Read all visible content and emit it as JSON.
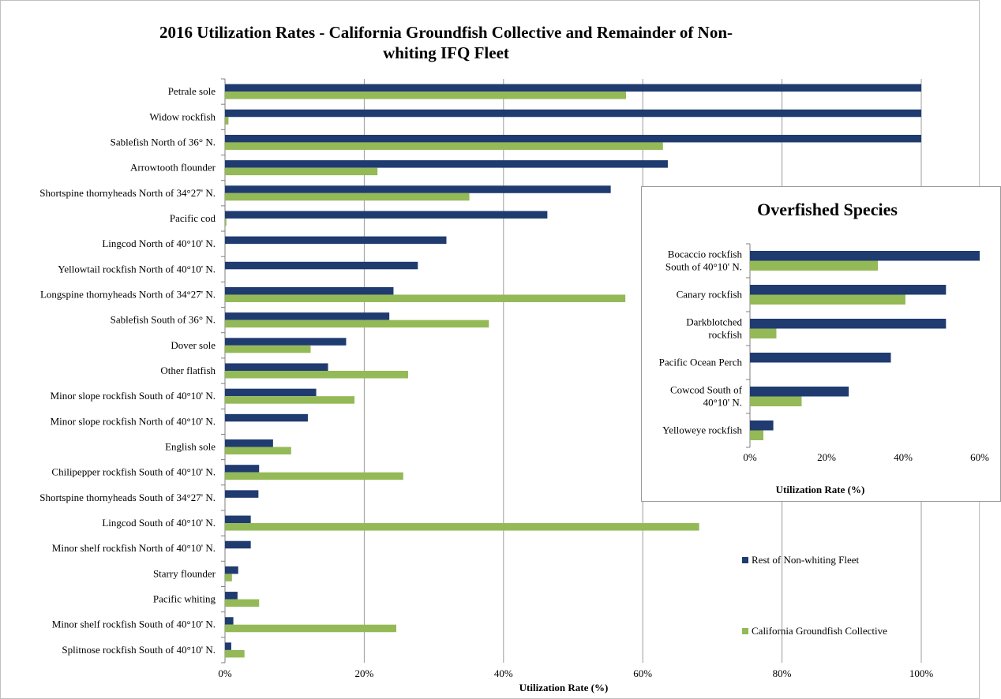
{
  "colors": {
    "rest": "#1f3b6f",
    "cgc": "#94b957",
    "grid": "#9c9c9c"
  },
  "chart_data": [
    {
      "type": "bar",
      "orientation": "horizontal",
      "title": "2016 Utilization Rates - California Groundfish Collective and Remainder of Non-whiting IFQ Fleet",
      "xlabel": "Utilization Rate (%)",
      "xlim": [
        0,
        100
      ],
      "xticks": [
        "0%",
        "20%",
        "40%",
        "60%",
        "80%",
        "100%"
      ],
      "grid": true,
      "legend": "right",
      "categories": [
        "Petrale sole",
        "Widow rockfish",
        "Sablefish North of 36° N.",
        "Arrowtooth flounder",
        "Shortspine thornyheads North of 34°27' N.",
        "Pacific cod",
        "Lingcod North of 40°10' N.",
        "Yellowtail rockfish North of 40°10' N.",
        "Longspine thornyheads North of 34°27' N.",
        "Sablefish South of 36° N.",
        "Dover sole",
        "Other flatfish",
        "Minor slope rockfish South of 40°10' N.",
        "Minor slope rockfish North of 40°10' N.",
        "English sole",
        "Chilipepper rockfish South of 40°10' N.",
        "Shortspine thornyheads South of 34°27' N.",
        "Lingcod South of 40°10' N.",
        "Minor shelf rockfish North of 40°10' N.",
        "Starry flounder",
        "Pacific whiting",
        "Minor shelf rockfish South of 40°10' N.",
        "Splitnose rockfish South of 40°10' N."
      ],
      "series": [
        {
          "name": "Rest of Non-whiting Fleet",
          "values": [
            100,
            100,
            100,
            63.6,
            55.4,
            46.3,
            31.8,
            27.7,
            24.2,
            23.6,
            17.4,
            14.8,
            13.1,
            11.9,
            6.9,
            4.9,
            4.8,
            3.7,
            3.7,
            1.9,
            1.8,
            1.2,
            0.9
          ]
        },
        {
          "name": "California Groundfish Collective",
          "values": [
            57.6,
            0.5,
            62.9,
            21.9,
            35.1,
            0.2,
            0,
            0,
            57.5,
            37.9,
            12.3,
            26.3,
            18.6,
            0,
            9.5,
            25.6,
            0,
            68.1,
            0,
            1,
            4.9,
            24.6,
            2.8
          ]
        }
      ]
    },
    {
      "type": "bar",
      "orientation": "horizontal",
      "title": "Overfished Species",
      "xlabel": "Utilization Rate (%)",
      "xlim": [
        0,
        60
      ],
      "xticks": [
        "0%",
        "20%",
        "40%",
        "60%"
      ],
      "grid": false,
      "categories": [
        [
          "Bocaccio rockfish",
          "South of 40°10' N."
        ],
        [
          "Canary rockfish"
        ],
        [
          "Darkblotched",
          "rockfish"
        ],
        [
          "Pacific Ocean Perch"
        ],
        [
          "Cowcod South of",
          "40°10' N."
        ],
        [
          "Yelloweye rockfish"
        ]
      ],
      "series": [
        {
          "name": "Rest of Non-whiting Fleet",
          "values": [
            60,
            51.2,
            51.2,
            36.8,
            25.8,
            6.1
          ]
        },
        {
          "name": "California Groundfish Collective",
          "values": [
            33.4,
            40.6,
            6.9,
            0,
            13.5,
            3.5
          ]
        }
      ]
    }
  ]
}
